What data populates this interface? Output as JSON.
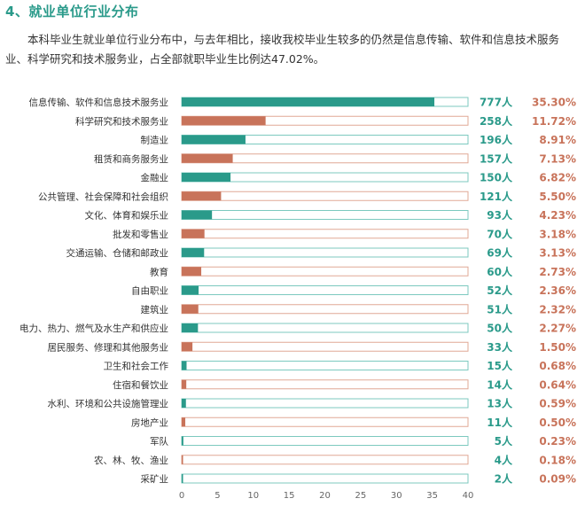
{
  "section": {
    "title": "4、就业单位行业分布",
    "intro": "本科毕业生就业单位行业分布中，与去年相比，接收我校毕业生较多的仍然是信息传输、软件和信息技术服务业、科学研究和技术服务业，占全部就职毕业生比例达47.02%。"
  },
  "colors": {
    "teal": "#2a9a8a",
    "orange": "#c8735a",
    "track_teal": "#7cc9bf",
    "track_orange": "#e0a896"
  },
  "chart_data": {
    "type": "bar",
    "orientation": "horizontal",
    "title": "",
    "xlabel": "",
    "ylabel": "",
    "xlim": [
      0,
      40
    ],
    "xticks": [
      0,
      5,
      10,
      15,
      20,
      25,
      30,
      35,
      40
    ],
    "grid": false,
    "legend": "none",
    "categories": [
      "信息传输、软件和信息技术服务业",
      "科学研究和技术服务业",
      "制造业",
      "租赁和商务服务业",
      "金融业",
      "公共管理、社会保障和社会组织",
      "文化、体育和娱乐业",
      "批发和零售业",
      "交通运输、仓储和邮政业",
      "教育",
      "自由职业",
      "建筑业",
      "电力、热力、燃气及水生产和供应业",
      "居民服务、修理和其他服务业",
      "卫生和社会工作",
      "住宿和餐饮业",
      "水利、环境和公共设施管理业",
      "房地产业",
      "军队",
      "农、林、牧、渔业",
      "采矿业"
    ],
    "values": [
      35.3,
      11.72,
      8.91,
      7.13,
      6.82,
      5.5,
      4.23,
      3.18,
      3.13,
      2.73,
      2.36,
      2.32,
      2.27,
      1.5,
      0.68,
      0.64,
      0.59,
      0.5,
      0.23,
      0.18,
      0.09
    ],
    "count_labels": [
      "777人",
      "258人",
      "196人",
      "157人",
      "150人",
      "121人",
      "93人",
      "70人",
      "69人",
      "60人",
      "52人",
      "51人",
      "50人",
      "33人",
      "15人",
      "14人",
      "13人",
      "11人",
      "5人",
      "4人",
      "2人"
    ],
    "percent_labels": [
      "35.30%",
      "11.72%",
      "8.91%",
      "7.13%",
      "6.82%",
      "5.50%",
      "4.23%",
      "3.18%",
      "3.13%",
      "2.73%",
      "2.36%",
      "2.32%",
      "2.27%",
      "1.50%",
      "0.68%",
      "0.64%",
      "0.59%",
      "0.50%",
      "0.23%",
      "0.18%",
      "0.09%"
    ],
    "bar_colors": [
      "teal",
      "orange",
      "teal",
      "orange",
      "teal",
      "orange",
      "teal",
      "orange",
      "teal",
      "orange",
      "teal",
      "orange",
      "teal",
      "orange",
      "teal",
      "orange",
      "teal",
      "orange",
      "teal",
      "orange",
      "teal"
    ]
  }
}
